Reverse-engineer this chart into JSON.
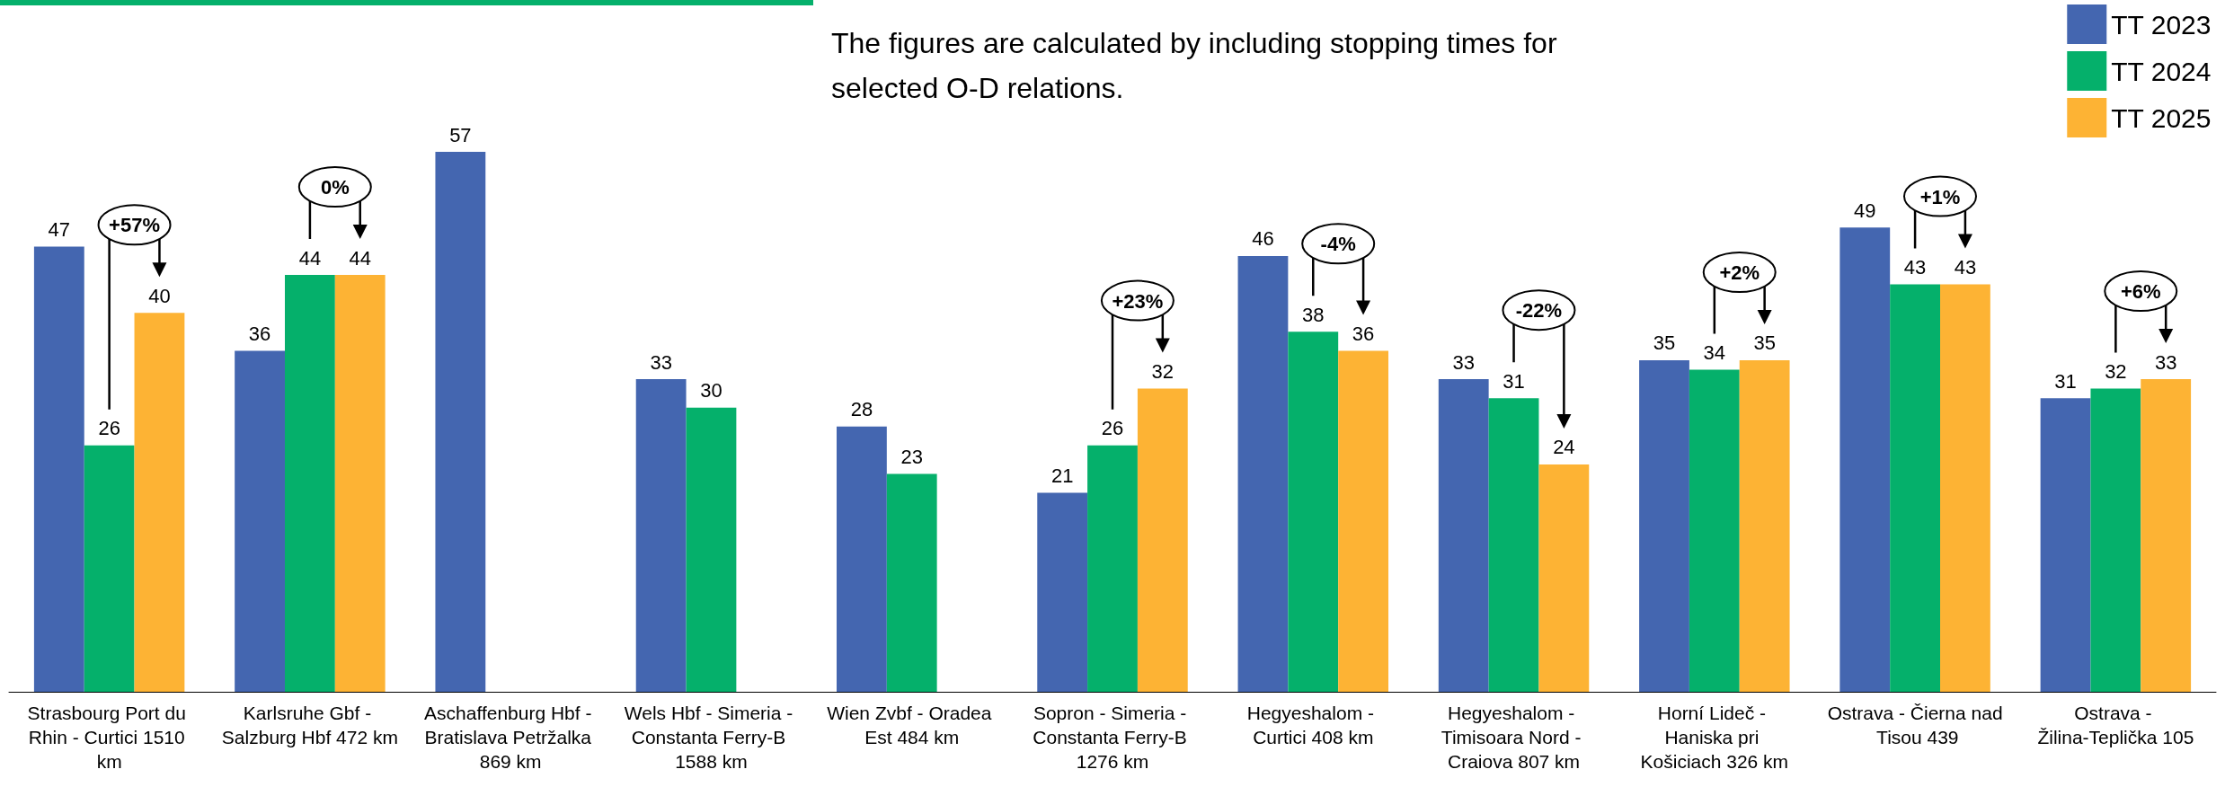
{
  "chart_data": {
    "type": "bar",
    "categories": [
      "Strasbourg Port du Rhin - Curtici 1510 km",
      "Karlsruhe Gbf - Salzburg Hbf 472 km",
      "Aschaffenburg Hbf - Bratislava Petržalka 869 km",
      "Wels Hbf - Simeria - Constanta Ferry-B 1588 km",
      "Wien Zvbf - Oradea Est 484 km",
      "Sopron - Simeria - Constanta Ferry-B 1276 km",
      "Hegyeshalom - Curtici 408 km",
      "Hegyeshalom - Timisoara Nord - Craiova 807 km",
      "Horní Lideč - Haniska pri Košiciach 326 km",
      "Ostrava - Čierna nad Tisou 439",
      "Ostrava - Žilina-Teplička 105"
    ],
    "series": [
      {
        "name": "TT 2023",
        "color": "#4466b0",
        "values": [
          47,
          36,
          57,
          33,
          28,
          21,
          46,
          33,
          35,
          49,
          31
        ]
      },
      {
        "name": "TT 2024",
        "color": "#05b06b",
        "values": [
          26,
          44,
          null,
          30,
          23,
          26,
          38,
          31,
          34,
          43,
          32
        ]
      },
      {
        "name": "TT 2025",
        "color": "#fdb334",
        "values": [
          40,
          44,
          null,
          null,
          null,
          32,
          36,
          24,
          35,
          43,
          33
        ]
      }
    ],
    "data_labels": true,
    "legend": "top right",
    "annotations": [
      "The figures are calculated by including stopping times for selected O-D relations.",
      "+57%",
      "0%",
      "+23%",
      "-4%",
      "-22%",
      "+2%",
      "+1%",
      "+6%"
    ]
  }
}
